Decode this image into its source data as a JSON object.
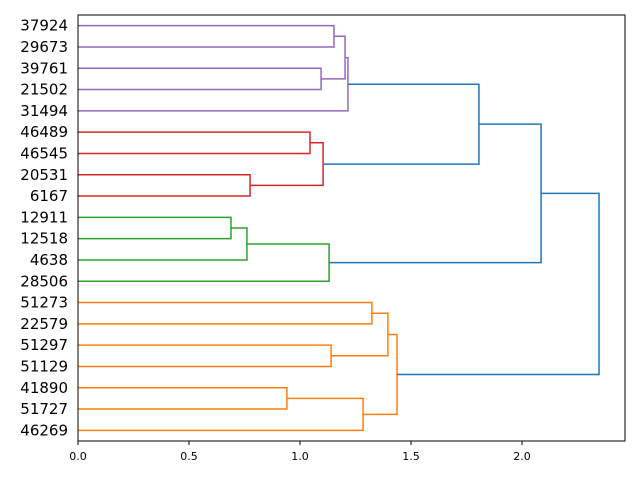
{
  "chart_data": {
    "type": "dendrogram",
    "title": "",
    "xlabel": "",
    "ylabel": "",
    "xlim": [
      0,
      2.464
    ],
    "xticks": [
      0.0,
      0.5,
      1.0,
      1.5,
      2.0
    ],
    "xtick_labels": [
      "0.0",
      "0.5",
      "1.0",
      "1.5",
      "2.0"
    ],
    "leaves": [
      "37924",
      "29673",
      "39761",
      "21502",
      "31494",
      "46489",
      "46545",
      "20531",
      "6167",
      "12911",
      "12518",
      "4638",
      "28506",
      "51273",
      "22579",
      "51297",
      "51129",
      "41890",
      "51727",
      "46269"
    ],
    "colors": {
      "purple": "#9467bd",
      "red": "#d62728",
      "green": "#2ca02c",
      "orange": "#ff7f0e",
      "blue": "#1f77b4"
    },
    "merges": [
      {
        "a": 0,
        "b": 1,
        "height": 1.153,
        "color": "purple"
      },
      {
        "a": 2,
        "b": 3,
        "height": 1.095,
        "color": "purple"
      },
      {
        "a": 20,
        "b": 21,
        "height": 1.203,
        "color": "purple"
      },
      {
        "a": 22,
        "b": 4,
        "height": 1.216,
        "color": "purple"
      },
      {
        "a": 5,
        "b": 6,
        "height": 1.045,
        "color": "red"
      },
      {
        "a": 7,
        "b": 8,
        "height": 0.775,
        "color": "red"
      },
      {
        "a": 24,
        "b": 25,
        "height": 1.104,
        "color": "red"
      },
      {
        "a": 23,
        "b": 26,
        "height": 1.806,
        "color": "blue"
      },
      {
        "a": 9,
        "b": 10,
        "height": 0.689,
        "color": "green"
      },
      {
        "a": 28,
        "b": 11,
        "height": 0.761,
        "color": "green"
      },
      {
        "a": 29,
        "b": 12,
        "height": 1.131,
        "color": "green"
      },
      {
        "a": 27,
        "b": 30,
        "height": 2.086,
        "color": "blue"
      },
      {
        "a": 13,
        "b": 14,
        "height": 1.324,
        "color": "orange"
      },
      {
        "a": 15,
        "b": 16,
        "height": 1.14,
        "color": "orange"
      },
      {
        "a": 32,
        "b": 33,
        "height": 1.396,
        "color": "orange"
      },
      {
        "a": 17,
        "b": 18,
        "height": 0.941,
        "color": "orange"
      },
      {
        "a": 35,
        "b": 19,
        "height": 1.284,
        "color": "orange"
      },
      {
        "a": 34,
        "b": 36,
        "height": 1.437,
        "color": "orange"
      },
      {
        "a": 31,
        "b": 37,
        "height": 2.347,
        "color": "blue"
      }
    ]
  }
}
